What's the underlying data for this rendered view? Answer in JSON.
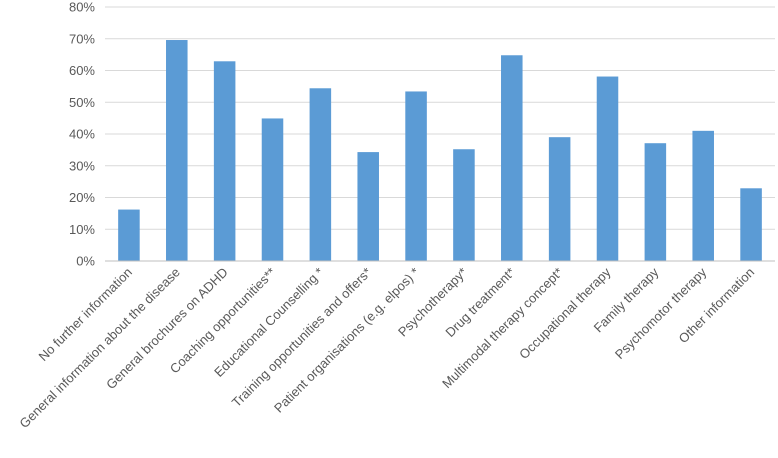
{
  "chart_data": {
    "type": "bar",
    "title": "",
    "xlabel": "",
    "ylabel": "",
    "ylim": [
      0,
      80
    ],
    "y_ticks": [
      "0%",
      "10%",
      "20%",
      "30%",
      "40%",
      "50%",
      "60%",
      "70%",
      "80%"
    ],
    "grid": true,
    "legend": "none",
    "bar_color": "#5b9bd5",
    "categories": [
      "No further information",
      "General information about the disease",
      "General brochures on ADHD",
      "Coaching opportunities**",
      "Educational Counselling *",
      "Training opportunities and offers*",
      "Patient organisations (e.g. elpos) *",
      "Psychotherapy*",
      "Drug treatment*",
      "Multimodal therapy concept*",
      "Occupational therapy",
      "Family therapy",
      "Psychomotor therapy",
      "Other information"
    ],
    "values": [
      16.2,
      69.6,
      62.9,
      44.9,
      54.4,
      34.3,
      53.4,
      35.2,
      64.8,
      39.0,
      58.1,
      37.1,
      41.0,
      22.9
    ]
  }
}
